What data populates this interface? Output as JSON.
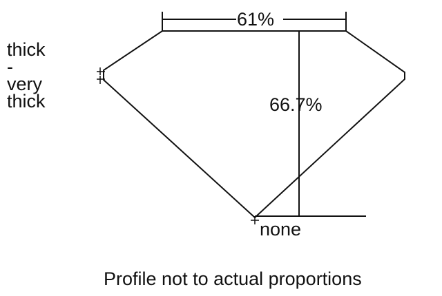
{
  "girdle_label": [
    "thick",
    "-",
    "very",
    "thick"
  ],
  "table_percent": "61%",
  "depth_percent": "66.7%",
  "culet_label": "none",
  "caption": "Profile not to actual proportions",
  "colors": {
    "line": "#111111",
    "background": "#ffffff"
  }
}
